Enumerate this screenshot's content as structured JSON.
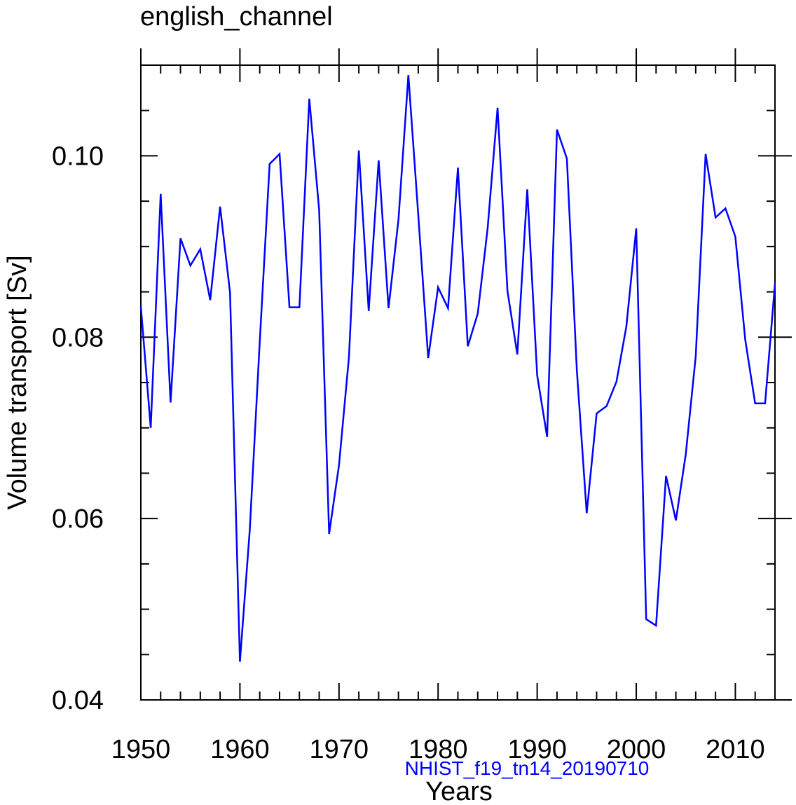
{
  "chart_data": {
    "type": "line",
    "title": "english_channel",
    "xlabel": "Years",
    "ylabel": "Volume transport [Sv]",
    "annotation": "NHIST_f19_tn14_20190710",
    "xlim": [
      1950,
      2014
    ],
    "ylim": [
      0.04,
      0.11
    ],
    "grid": false,
    "x_ticks": [
      1950,
      1960,
      1970,
      1980,
      1990,
      2000,
      2010
    ],
    "x_tick_labels": [
      "1950",
      "1960",
      "1970",
      "1980",
      "1990",
      "2000",
      "2010"
    ],
    "y_ticks": [
      0.04,
      0.06,
      0.08,
      0.1
    ],
    "y_tick_labels": [
      "0.04",
      "0.06",
      "0.08",
      "0.10"
    ],
    "series": [
      {
        "name": "NHIST_f19_tn14_20190710",
        "color": "#0000ff",
        "x": [
          1950,
          1951,
          1952,
          1953,
          1954,
          1955,
          1956,
          1957,
          1958,
          1959,
          1960,
          1961,
          1962,
          1963,
          1964,
          1965,
          1966,
          1967,
          1968,
          1969,
          1970,
          1971,
          1972,
          1973,
          1974,
          1975,
          1976,
          1977,
          1978,
          1979,
          1980,
          1981,
          1982,
          1983,
          1984,
          1985,
          1986,
          1987,
          1988,
          1989,
          1990,
          1991,
          1992,
          1993,
          1994,
          1995,
          1996,
          1997,
          1998,
          1999,
          2000,
          2001,
          2002,
          2003,
          2004,
          2005,
          2006,
          2007,
          2008,
          2009,
          2010,
          2011,
          2012,
          2013,
          2014
        ],
        "values": [
          0.0834,
          0.07,
          0.0958,
          0.0728,
          0.0909,
          0.0879,
          0.0897,
          0.0841,
          0.0944,
          0.0849,
          0.0442,
          0.0588,
          0.0795,
          0.0991,
          0.1002,
          0.0833,
          0.0833,
          0.1063,
          0.094,
          0.0583,
          0.0659,
          0.0778,
          0.1006,
          0.0829,
          0.0995,
          0.0832,
          0.093,
          0.1089,
          0.0935,
          0.0777,
          0.0855,
          0.0832,
          0.0987,
          0.079,
          0.0826,
          0.092,
          0.1053,
          0.0851,
          0.0781,
          0.0963,
          0.0758,
          0.069,
          0.1029,
          0.0997,
          0.0764,
          0.0606,
          0.0716,
          0.0724,
          0.0751,
          0.0812,
          0.092,
          0.0489,
          0.0482,
          0.0647,
          0.0598,
          0.0671,
          0.0779,
          0.1002,
          0.0932,
          0.0942,
          0.0911,
          0.0797,
          0.0727,
          0.0727,
          0.0859
        ]
      }
    ]
  }
}
